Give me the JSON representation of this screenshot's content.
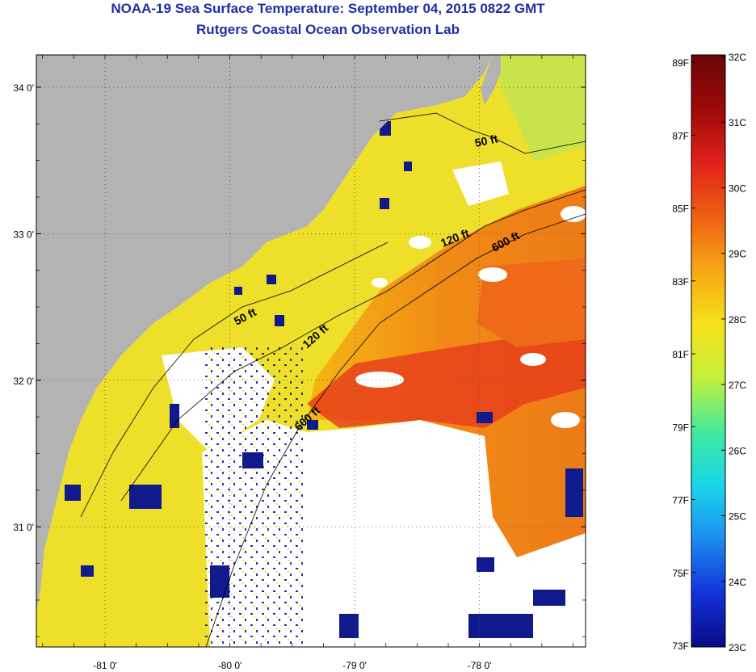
{
  "header": {
    "title": "NOAA-19 Sea Surface Temperature:  September 04, 2015 0822 GMT",
    "subtitle": "Rutgers Coastal Ocean Observation Lab"
  },
  "map": {
    "lat_labels": [
      {
        "value": 34,
        "label": "34 0'"
      },
      {
        "value": 33,
        "label": "33 0'"
      },
      {
        "value": 32,
        "label": "32 0'"
      },
      {
        "value": 31,
        "label": "31 0'"
      }
    ],
    "lon_labels": [
      {
        "value": -81,
        "label": "-81 0'"
      },
      {
        "value": -80,
        "label": "-80 0'"
      },
      {
        "value": -79,
        "label": "-79 0'"
      },
      {
        "value": -78,
        "label": "-78 0'"
      }
    ],
    "lat_range": [
      30.18,
      34.22
    ],
    "lon_range": [
      -81.55,
      -77.15
    ],
    "isobaths": [
      {
        "label": "50 ft"
      },
      {
        "label": "50 ft"
      },
      {
        "label": "120 ft"
      },
      {
        "label": "120 ft"
      },
      {
        "label": "600 ft"
      },
      {
        "label": "600 ft"
      }
    ],
    "colors": {
      "land": "#b3b3b3",
      "cloud": "#ffffff",
      "shelf": "#f1e21b",
      "warm": "#ef6a14",
      "hot": "#e5351a",
      "cold": "#101a8c"
    }
  },
  "colorbar": {
    "fahrenheit": [
      "89F",
      "87F",
      "85F",
      "83F",
      "81F",
      "79F",
      "77F",
      "75F",
      "73F"
    ],
    "celsius": [
      "32C",
      "31C",
      "30C",
      "29C",
      "28C",
      "27C",
      "26C",
      "25C",
      "24C",
      "23C"
    ],
    "gradient": [
      "#0a0b87",
      "#1232d8",
      "#1d8cf0",
      "#19d6ea",
      "#43e99c",
      "#c5f03a",
      "#f5e11b",
      "#f6a714",
      "#ef5f12",
      "#e0211b",
      "#9c0a0a",
      "#6b0505"
    ]
  }
}
